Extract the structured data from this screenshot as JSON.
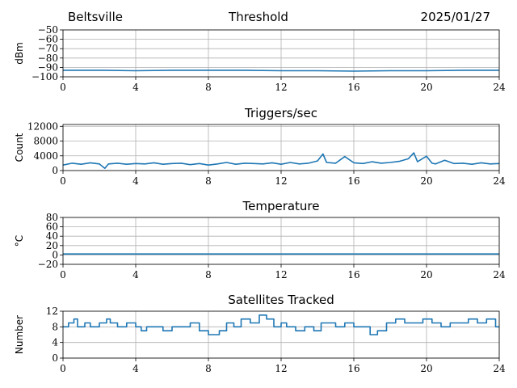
{
  "header": {
    "site": "Beltsville",
    "title": "Threshold",
    "date": "2025/01/27"
  },
  "style": {
    "line_color": "#1f77b4",
    "grid_color": "#b0b0b0",
    "axis_color": "#000000"
  },
  "chart_data": [
    {
      "type": "line",
      "title": "",
      "xlabel": "",
      "ylabel": "dBm",
      "xlim": [
        0,
        24
      ],
      "ylim": [
        -100,
        -50
      ],
      "xticks": [
        0,
        4,
        8,
        12,
        16,
        20,
        24
      ],
      "yticks": [
        -50,
        -60,
        -70,
        -80,
        -90,
        -100
      ],
      "ytick_labels": [
        "−50",
        "−60",
        "−70",
        "−80",
        "−90",
        "−100"
      ],
      "grid": true,
      "series": [
        {
          "x": [
            0,
            2,
            4,
            6,
            8,
            10,
            12,
            14,
            16,
            18,
            20,
            22,
            24
          ],
          "y": [
            -93,
            -93,
            -93.5,
            -93,
            -93,
            -93,
            -93.5,
            -93.5,
            -94,
            -93.5,
            -93.5,
            -93,
            -93
          ]
        }
      ]
    },
    {
      "type": "line",
      "title": "Triggers/sec",
      "xlabel": "",
      "ylabel": "Count",
      "xlim": [
        0,
        24
      ],
      "ylim": [
        0,
        12500
      ],
      "xticks": [
        0,
        4,
        8,
        12,
        16,
        20,
        24
      ],
      "yticks": [
        0,
        4000,
        8000,
        12000
      ],
      "ytick_labels": [
        "0",
        "4000",
        "8000",
        "12000"
      ],
      "grid": true,
      "series": [
        {
          "x": [
            0,
            0.5,
            1,
            1.5,
            2,
            2.3,
            2.5,
            3,
            3.5,
            4,
            4.5,
            5,
            5.5,
            6,
            6.5,
            7,
            7.5,
            8,
            8.5,
            9,
            9.5,
            10,
            10.5,
            11,
            11.5,
            12,
            12.5,
            13,
            13.5,
            14,
            14.3,
            14.5,
            15,
            15.5,
            16,
            16.5,
            17,
            17.5,
            18,
            18.5,
            19,
            19.3,
            19.5,
            20,
            20.3,
            20.5,
            21,
            21.5,
            22,
            22.5,
            23,
            23.5,
            24
          ],
          "y": [
            1500,
            2000,
            1700,
            2100,
            1800,
            600,
            1800,
            2000,
            1700,
            1900,
            1800,
            2100,
            1700,
            1900,
            2000,
            1600,
            1900,
            1500,
            1800,
            2200,
            1700,
            2000,
            1900,
            1800,
            2100,
            1700,
            2200,
            1800,
            2000,
            2600,
            4500,
            2200,
            2000,
            3800,
            2100,
            1900,
            2400,
            2000,
            2200,
            2500,
            3200,
            4800,
            2400,
            3900,
            2000,
            1800,
            2800,
            1900,
            2000,
            1700,
            2100,
            1800,
            1900
          ]
        }
      ]
    },
    {
      "type": "line",
      "title": "Temperature",
      "xlabel": "",
      "ylabel": "°C",
      "xlim": [
        0,
        24
      ],
      "ylim": [
        -20,
        80
      ],
      "xticks": [
        0,
        4,
        8,
        12,
        16,
        20,
        24
      ],
      "yticks": [
        -20,
        0,
        20,
        40,
        60,
        80
      ],
      "ytick_labels": [
        "−20",
        "0",
        "20",
        "40",
        "60",
        "80"
      ],
      "grid": true,
      "series": [
        {
          "x": [
            0,
            24
          ],
          "y": [
            2,
            2
          ]
        }
      ]
    },
    {
      "type": "line",
      "title": "Satellites Tracked",
      "xlabel": "",
      "ylabel": "Number",
      "xlim": [
        0,
        24
      ],
      "ylim": [
        0,
        12
      ],
      "xticks": [
        0,
        4,
        8,
        12,
        16,
        20,
        24
      ],
      "yticks": [
        0,
        4,
        8,
        12
      ],
      "ytick_labels": [
        "0",
        "4",
        "8",
        "12"
      ],
      "grid": true,
      "step": true,
      "series": [
        {
          "x": [
            0,
            0.3,
            0.6,
            0.8,
            1.2,
            1.5,
            2.0,
            2.4,
            2.6,
            3.0,
            3.5,
            4.0,
            4.3,
            4.6,
            5.0,
            5.5,
            6.0,
            6.5,
            7.0,
            7.5,
            8.0,
            8.6,
            9.0,
            9.4,
            9.8,
            10.3,
            10.8,
            11.2,
            11.6,
            12.0,
            12.3,
            12.8,
            13.3,
            13.8,
            14.2,
            14.6,
            15.0,
            15.5,
            16.0,
            16.5,
            16.9,
            17.3,
            17.8,
            18.3,
            18.8,
            19.3,
            19.8,
            20.3,
            20.8,
            21.3,
            21.8,
            22.3,
            22.8,
            23.3,
            23.8,
            24
          ],
          "y": [
            8,
            9,
            10,
            8,
            9,
            8,
            9,
            10,
            9,
            8,
            9,
            8,
            7,
            8,
            8,
            7,
            8,
            8,
            9,
            7,
            6,
            7,
            9,
            8,
            10,
            9,
            11,
            10,
            8,
            9,
            8,
            7,
            8,
            7,
            9,
            9,
            8,
            9,
            8,
            8,
            6,
            7,
            9,
            10,
            9,
            9,
            10,
            9,
            8,
            9,
            9,
            10,
            9,
            10,
            8,
            8
          ]
        }
      ]
    }
  ]
}
